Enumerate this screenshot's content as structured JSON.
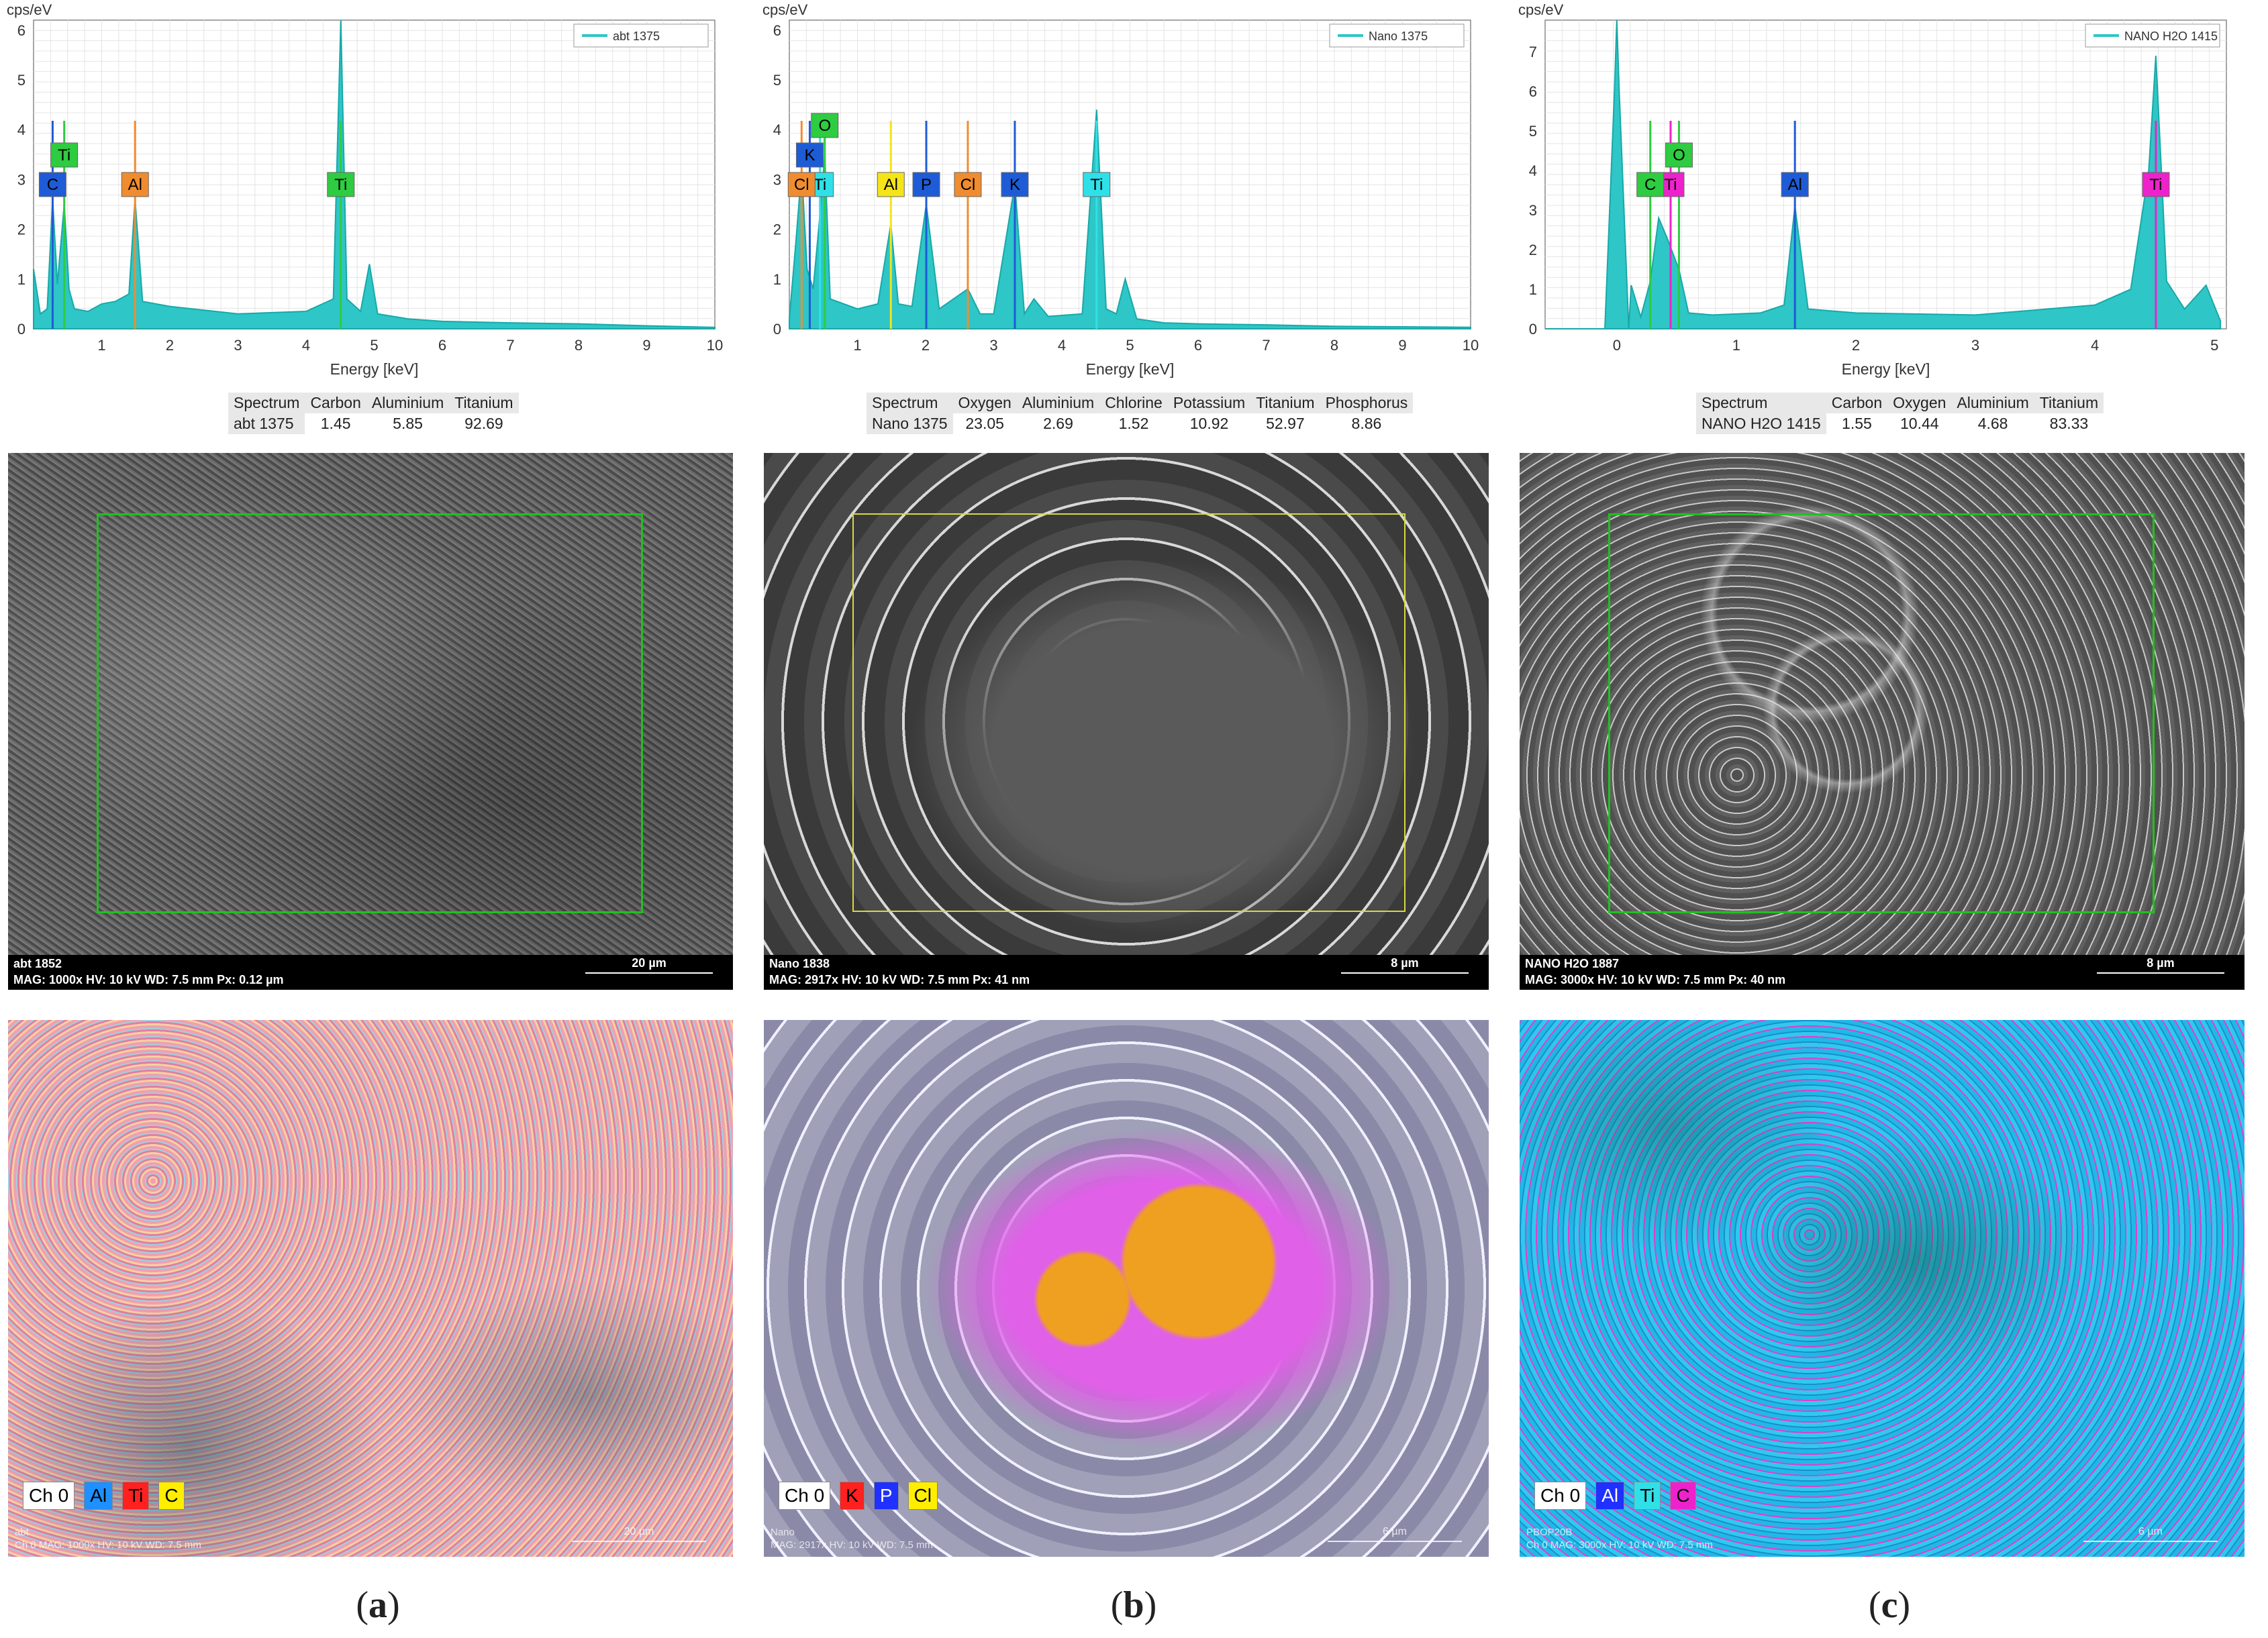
{
  "panels": [
    {
      "caption_letter": "a",
      "chart": {
        "ylabel": "cps/eV",
        "xlabel": "Energy [keV]",
        "legend": "abt 1375",
        "xticks": [
          "1",
          "2",
          "3",
          "4",
          "5",
          "6",
          "7",
          "8",
          "9",
          "10"
        ],
        "yticks": [
          "0",
          "1",
          "2",
          "3",
          "4",
          "5",
          "6"
        ],
        "peak_labels": [
          {
            "text": "C",
            "color": "#1e5bd6"
          },
          {
            "text": "Ti",
            "color": "#2ecc40"
          },
          {
            "text": "Al",
            "color": "#f08c30"
          },
          {
            "text": "Ti",
            "color": "#2ecc40"
          }
        ]
      },
      "table": {
        "headers": [
          "Spectrum",
          "Carbon",
          "Aluminium",
          "Titanium"
        ],
        "row": [
          "abt 1375",
          "1.45",
          "5.85",
          "92.69"
        ]
      },
      "sem": {
        "line1": "abt 1852",
        "line2": "MAG: 1000x    HV: 10 kV    WD: 7.5 mm    Px: 0.12 µm",
        "scale": "20 µm",
        "roi_color": "#20c020"
      },
      "map": {
        "legend": [
          {
            "text": "Ch 0",
            "color": "#ffffff"
          },
          {
            "text": "Al",
            "color": "#1e90ff"
          },
          {
            "text": "Ti",
            "color": "#ff2020"
          },
          {
            "text": "C",
            "color": "#ffee00"
          }
        ],
        "foot1": "abt",
        "foot2": "Ch 0    MAG: 1000x    HV: 10 kV    WD: 7.5 mm",
        "scale": "20 µm"
      }
    },
    {
      "caption_letter": "b",
      "chart": {
        "ylabel": "cps/eV",
        "xlabel": "Energy [keV]",
        "legend": "Nano 1375",
        "xticks": [
          "1",
          "2",
          "3",
          "4",
          "5",
          "6",
          "7",
          "8",
          "9",
          "10"
        ],
        "yticks": [
          "0",
          "1",
          "2",
          "3",
          "4",
          "5",
          "6"
        ],
        "peak_labels": [
          {
            "text": "Ti",
            "color": "#30e0e8"
          },
          {
            "text": "K",
            "color": "#1e5bd6"
          },
          {
            "text": "Cl",
            "color": "#f08c30"
          },
          {
            "text": "O",
            "color": "#2ecc40"
          },
          {
            "text": "Al",
            "color": "#f5e41a"
          },
          {
            "text": "P",
            "color": "#1e5bd6"
          },
          {
            "text": "Cl",
            "color": "#f08c30"
          },
          {
            "text": "K",
            "color": "#1e5bd6"
          },
          {
            "text": "Ti",
            "color": "#30e0e8"
          }
        ]
      },
      "table": {
        "headers": [
          "Spectrum",
          "Oxygen",
          "Aluminium",
          "Chlorine",
          "Potassium",
          "Titanium",
          "Phosphorus"
        ],
        "row": [
          "Nano 1375",
          "23.05",
          "2.69",
          "1.52",
          "10.92",
          "52.97",
          "8.86"
        ]
      },
      "sem": {
        "line1": "Nano 1838",
        "line2": "MAG: 2917x    HV: 10 kV    WD: 7.5 mm    Px: 41 nm",
        "scale": "8 µm",
        "roi_color": "#d8d840"
      },
      "map": {
        "legend": [
          {
            "text": "Ch 0",
            "color": "#ffffff"
          },
          {
            "text": "K",
            "color": "#ff2020"
          },
          {
            "text": "P",
            "color": "#2030ff"
          },
          {
            "text": "Cl",
            "color": "#ffee00"
          }
        ],
        "foot1": "Nano",
        "foot2": "MAG: 2917x    HV: 10 kV    WD: 7.5 mm",
        "scale": "6 µm"
      }
    },
    {
      "caption_letter": "c",
      "chart": {
        "ylabel": "cps/eV",
        "xlabel": "Energy [keV]",
        "legend": "NANO H2O 1415",
        "xticks": [
          "0",
          "1",
          "2",
          "3",
          "4",
          "5"
        ],
        "yticks": [
          "0",
          "1",
          "2",
          "3",
          "4",
          "5",
          "6",
          "7"
        ],
        "peak_labels": [
          {
            "text": "Ti",
            "color": "#ee22cc"
          },
          {
            "text": "C",
            "color": "#2ecc40"
          },
          {
            "text": "O",
            "color": "#2ecc40"
          },
          {
            "text": "Al",
            "color": "#1e5bd6"
          },
          {
            "text": "Ti",
            "color": "#ee22cc"
          }
        ]
      },
      "table": {
        "headers": [
          "Spectrum",
          "Carbon",
          "Oxygen",
          "Aluminium",
          "Titanium"
        ],
        "row": [
          "NANO H2O 1415",
          "1.55",
          "10.44",
          "4.68",
          "83.33"
        ]
      },
      "sem": {
        "line1": "NANO H2O 1887",
        "line2": "MAG: 3000x    HV: 10 kV    WD: 7.5 mm    Px: 40 nm",
        "scale": "8 µm",
        "roi_color": "#20c020"
      },
      "map": {
        "legend": [
          {
            "text": "Ch 0",
            "color": "#ffffff"
          },
          {
            "text": "Al",
            "color": "#2030ff"
          },
          {
            "text": "Ti",
            "color": "#30e0e8"
          },
          {
            "text": "C",
            "color": "#ee22cc"
          }
        ],
        "foot1": "PBOP20B",
        "foot2": "Ch 0    MAG: 3000x    HV: 10 kV    WD: 7.5 mm",
        "scale": "6 µm"
      }
    }
  ],
  "chart_data": [
    {
      "type": "line",
      "title": "abt 1375",
      "xlabel": "Energy [keV]",
      "ylabel": "cps/eV",
      "xlim": [
        0,
        10
      ],
      "ylim": [
        0,
        6.2
      ],
      "series": [
        {
          "name": "abt 1375",
          "x": [
            0.0,
            0.1,
            0.2,
            0.28,
            0.35,
            0.45,
            0.52,
            0.6,
            0.8,
            1.0,
            1.2,
            1.4,
            1.49,
            1.6,
            2.0,
            3.0,
            4.0,
            4.4,
            4.51,
            4.6,
            4.8,
            4.93,
            5.05,
            5.5,
            6,
            7,
            8,
            9,
            10
          ],
          "y": [
            1.2,
            0.3,
            0.4,
            2.6,
            0.9,
            2.5,
            0.8,
            0.4,
            0.35,
            0.5,
            0.55,
            0.7,
            2.6,
            0.55,
            0.45,
            0.3,
            0.35,
            0.6,
            6.2,
            0.6,
            0.35,
            1.3,
            0.3,
            0.2,
            0.15,
            0.12,
            0.1,
            0.06,
            0.03
          ]
        }
      ],
      "peaks": [
        {
          "element": "C",
          "keV": 0.28
        },
        {
          "element": "Ti",
          "keV": 0.45
        },
        {
          "element": "Al",
          "keV": 1.49
        },
        {
          "element": "Ti",
          "keV": 4.51
        }
      ]
    },
    {
      "type": "line",
      "title": "Nano 1375",
      "xlabel": "Energy [keV]",
      "ylabel": "cps/eV",
      "xlim": [
        0,
        10
      ],
      "ylim": [
        0,
        6.2
      ],
      "series": [
        {
          "name": "Nano 1375",
          "x": [
            0.0,
            0.1,
            0.18,
            0.26,
            0.35,
            0.45,
            0.52,
            0.6,
            1.0,
            1.3,
            1.49,
            1.6,
            1.8,
            2.01,
            2.2,
            2.62,
            2.8,
            3.0,
            3.31,
            3.45,
            3.59,
            3.8,
            4.3,
            4.51,
            4.65,
            4.8,
            4.93,
            5.1,
            5.5,
            6,
            7,
            8,
            9,
            10
          ],
          "y": [
            0.2,
            1.8,
            3.2,
            1.2,
            0.8,
            2.3,
            3.5,
            0.6,
            0.4,
            0.5,
            2.1,
            0.5,
            0.45,
            2.5,
            0.4,
            0.8,
            0.3,
            0.3,
            2.9,
            0.3,
            0.6,
            0.25,
            0.3,
            4.4,
            0.4,
            0.3,
            1.0,
            0.2,
            0.12,
            0.1,
            0.08,
            0.05,
            0.04,
            0.03
          ]
        }
      ],
      "peaks": [
        {
          "element": "Ti",
          "keV": 0.45
        },
        {
          "element": "K",
          "keV": 0.3
        },
        {
          "element": "Cl",
          "keV": 0.18
        },
        {
          "element": "O",
          "keV": 0.52
        },
        {
          "element": "Al",
          "keV": 1.49
        },
        {
          "element": "P",
          "keV": 2.01
        },
        {
          "element": "Cl",
          "keV": 2.62
        },
        {
          "element": "K",
          "keV": 3.31
        },
        {
          "element": "Ti",
          "keV": 4.51
        }
      ]
    },
    {
      "type": "line",
      "title": "NANO H2O 1415",
      "xlabel": "Energy [keV]",
      "ylabel": "cps/eV",
      "xlim": [
        -0.6,
        5.1
      ],
      "ylim": [
        0,
        7.8
      ],
      "series": [
        {
          "name": "NANO H2O 1415",
          "x": [
            -0.6,
            -0.1,
            -0.02,
            0,
            0.02,
            0.1,
            0.12,
            0.2,
            0.28,
            0.35,
            0.42,
            0.52,
            0.6,
            0.8,
            1.2,
            1.4,
            1.49,
            1.6,
            2.0,
            3.0,
            4.0,
            4.3,
            4.45,
            4.51,
            4.6,
            4.75,
            4.93,
            5.05
          ],
          "y": [
            0,
            0,
            6,
            7.8,
            6,
            0,
            1.1,
            0.3,
            1.2,
            2.8,
            2.3,
            1.5,
            0.4,
            0.35,
            0.4,
            0.6,
            3.1,
            0.5,
            0.4,
            0.35,
            0.6,
            1.0,
            4.0,
            6.9,
            1.2,
            0.5,
            1.1,
            0.2
          ]
        }
      ],
      "peaks": [
        {
          "element": "Ti",
          "keV": 0.45
        },
        {
          "element": "C",
          "keV": 0.28
        },
        {
          "element": "O",
          "keV": 0.52
        },
        {
          "element": "Al",
          "keV": 1.49
        },
        {
          "element": "Ti",
          "keV": 4.51
        }
      ]
    }
  ]
}
